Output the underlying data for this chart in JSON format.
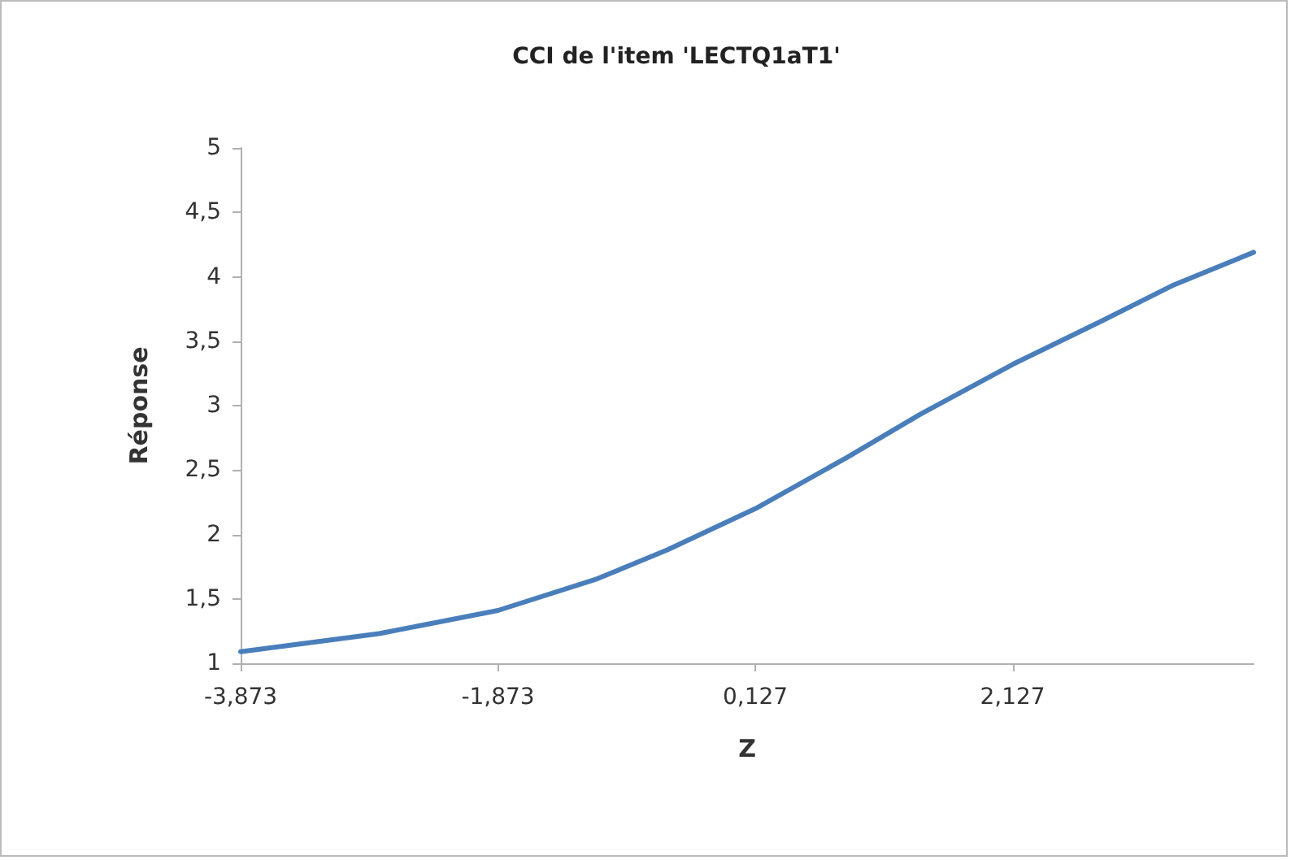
{
  "chart_data": {
    "type": "line",
    "title": "CCI de l'item 'LECTQ1aT1'",
    "xlabel": "Z",
    "ylabel": "Réponse",
    "x": [
      -3.873,
      -2.797,
      -1.873,
      -1.117,
      -0.557,
      0.127,
      0.844,
      1.404,
      2.127,
      2.805,
      3.365,
      4.0
    ],
    "series": [
      {
        "color": "#4a7ebb",
        "values": [
          1.09,
          1.23,
          1.41,
          1.65,
          1.88,
          2.2,
          2.6,
          2.93,
          3.32,
          3.65,
          3.93,
          4.19
        ]
      }
    ],
    "xlim": [
      -3.873,
      4.0
    ],
    "xticks": [
      {
        "value": -3.873,
        "label": "-3,873"
      },
      {
        "value": -1.873,
        "label": "-1,873"
      },
      {
        "value": 0.127,
        "label": "0,127"
      },
      {
        "value": 2.127,
        "label": "2,127"
      }
    ],
    "ylim": [
      1,
      5
    ],
    "yticks": [
      1,
      {
        "value": 1.5,
        "label": "1,5"
      },
      2,
      {
        "value": 2.5,
        "label": "2,5"
      },
      3,
      {
        "value": 3.5,
        "label": "3,5"
      },
      4,
      {
        "value": 4.5,
        "label": "4,5"
      },
      5
    ],
    "grid": false,
    "marker": "none",
    "line_style": "solid"
  }
}
